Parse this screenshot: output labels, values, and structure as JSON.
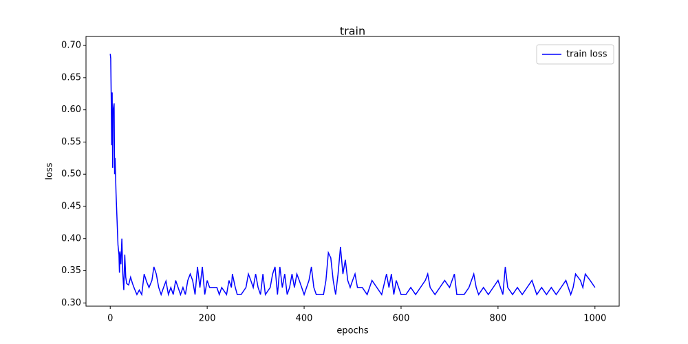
{
  "chart_data": {
    "type": "line",
    "title": "train",
    "x_label": "epochs",
    "y_label": "loss",
    "x": [
      0,
      1,
      2,
      3,
      4,
      5,
      6,
      8,
      9,
      10,
      12,
      14,
      16,
      18,
      19,
      20,
      22,
      24,
      26,
      28,
      30,
      32,
      34,
      38,
      42,
      46,
      50,
      55,
      60,
      65,
      70,
      75,
      80,
      86,
      90,
      95,
      100,
      105,
      110,
      115,
      120,
      125,
      130,
      135,
      140,
      145,
      150,
      155,
      160,
      165,
      170,
      175,
      180,
      185,
      190,
      195,
      200,
      205,
      220,
      225,
      230,
      240,
      245,
      250,
      252,
      258,
      262,
      270,
      280,
      285,
      290,
      295,
      300,
      305,
      310,
      315,
      320,
      330,
      335,
      340,
      345,
      350,
      355,
      360,
      365,
      370,
      375,
      380,
      385,
      390,
      395,
      400,
      410,
      415,
      420,
      425,
      440,
      445,
      450,
      455,
      460,
      465,
      470,
      475,
      480,
      485,
      490,
      495,
      500,
      505,
      510,
      520,
      530,
      540,
      550,
      560,
      570,
      575,
      580,
      585,
      590,
      600,
      610,
      620,
      630,
      640,
      650,
      655,
      660,
      670,
      680,
      690,
      700,
      710,
      715,
      730,
      740,
      750,
      755,
      760,
      770,
      780,
      790,
      800,
      810,
      815,
      820,
      830,
      840,
      850,
      860,
      870,
      880,
      890,
      900,
      910,
      920,
      930,
      940,
      950,
      955,
      960,
      970,
      975,
      980,
      990,
      1000
    ],
    "series": [
      {
        "name": "train loss",
        "color": "#0000ff",
        "values": [
          0.687,
          0.68,
          0.62,
          0.545,
          0.627,
          0.51,
          0.6,
          0.61,
          0.5,
          0.525,
          0.47,
          0.43,
          0.39,
          0.375,
          0.347,
          0.38,
          0.36,
          0.4,
          0.345,
          0.32,
          0.375,
          0.34,
          0.33,
          0.328,
          0.34,
          0.33,
          0.322,
          0.313,
          0.32,
          0.313,
          0.345,
          0.333,
          0.324,
          0.335,
          0.356,
          0.345,
          0.324,
          0.313,
          0.324,
          0.334,
          0.313,
          0.324,
          0.313,
          0.335,
          0.324,
          0.313,
          0.324,
          0.313,
          0.335,
          0.345,
          0.335,
          0.313,
          0.356,
          0.324,
          0.356,
          0.313,
          0.335,
          0.324,
          0.324,
          0.313,
          0.324,
          0.313,
          0.335,
          0.324,
          0.345,
          0.324,
          0.313,
          0.313,
          0.324,
          0.345,
          0.335,
          0.324,
          0.345,
          0.324,
          0.313,
          0.345,
          0.313,
          0.324,
          0.345,
          0.356,
          0.313,
          0.356,
          0.324,
          0.345,
          0.313,
          0.324,
          0.345,
          0.324,
          0.345,
          0.335,
          0.324,
          0.313,
          0.335,
          0.356,
          0.324,
          0.313,
          0.313,
          0.335,
          0.378,
          0.37,
          0.335,
          0.313,
          0.345,
          0.387,
          0.345,
          0.367,
          0.335,
          0.324,
          0.335,
          0.345,
          0.324,
          0.324,
          0.313,
          0.335,
          0.324,
          0.313,
          0.345,
          0.324,
          0.345,
          0.313,
          0.335,
          0.313,
          0.313,
          0.324,
          0.313,
          0.324,
          0.335,
          0.345,
          0.324,
          0.313,
          0.324,
          0.335,
          0.324,
          0.345,
          0.313,
          0.313,
          0.324,
          0.345,
          0.324,
          0.313,
          0.324,
          0.313,
          0.324,
          0.335,
          0.313,
          0.356,
          0.324,
          0.313,
          0.324,
          0.313,
          0.324,
          0.335,
          0.313,
          0.324,
          0.313,
          0.324,
          0.313,
          0.324,
          0.335,
          0.313,
          0.324,
          0.345,
          0.335,
          0.324,
          0.345,
          0.335,
          0.324
        ]
      }
    ],
    "xlim": [
      -50,
      1050
    ],
    "ylim": [
      0.295,
      0.714
    ],
    "xticks": [
      0,
      200,
      400,
      600,
      800,
      1000
    ],
    "yticks": [
      {
        "value": 0.3,
        "label": "0.30"
      },
      {
        "value": 0.35,
        "label": "0.35"
      },
      {
        "value": 0.4,
        "label": "0.40"
      },
      {
        "value": 0.45,
        "label": "0.45"
      },
      {
        "value": 0.5,
        "label": "0.50"
      },
      {
        "value": 0.55,
        "label": "0.55"
      },
      {
        "value": 0.6,
        "label": "0.60"
      },
      {
        "value": 0.65,
        "label": "0.65"
      },
      {
        "value": 0.7,
        "label": "0.70"
      }
    ],
    "legend": "upper right"
  }
}
